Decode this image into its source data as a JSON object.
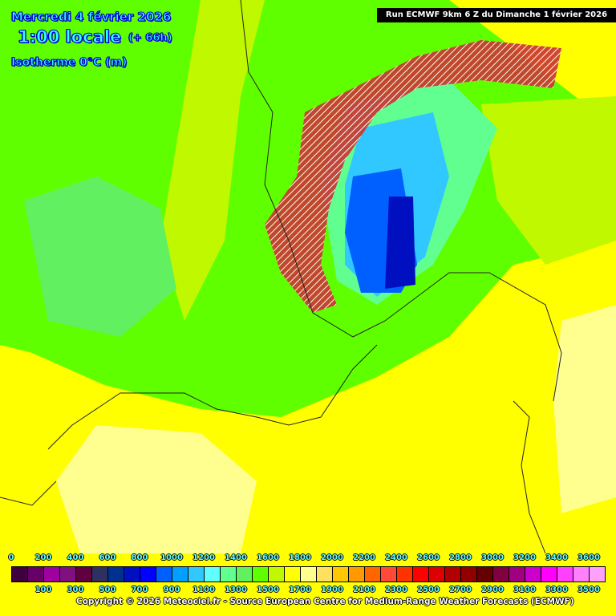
{
  "header": {
    "date": "Mercredi 4 février 2026",
    "time": "1:00 locale",
    "lead": "(+ 66h)",
    "parameter": "Isotherme 0°C (m)",
    "run": "Run ECMWF 9km 6 Z du Dimanche 1 février 2026"
  },
  "legend": {
    "unit": "m",
    "top_labels": [
      "0",
      "200",
      "400",
      "600",
      "800",
      "1000",
      "1200",
      "1400",
      "1600",
      "1800",
      "2000",
      "2200",
      "2400",
      "2600",
      "2800",
      "3000",
      "3200",
      "3400",
      "3600"
    ],
    "bottom_labels": [
      "100",
      "300",
      "500",
      "700",
      "900",
      "1100",
      "1300",
      "1500",
      "1700",
      "1900",
      "2100",
      "2300",
      "2500",
      "2700",
      "2900",
      "3100",
      "3300",
      "3500"
    ],
    "colors": [
      "#400040",
      "#660066",
      "#a000a0",
      "#801080",
      "#600040",
      "#303060",
      "#003090",
      "#0010c0",
      "#0000ff",
      "#0060ff",
      "#00a0ff",
      "#30c8ff",
      "#60ffff",
      "#60ff90",
      "#60f060",
      "#60ff00",
      "#c0f800",
      "#ffff00",
      "#ffff90",
      "#ffe060",
      "#ffc800",
      "#ff9900",
      "#ff6600",
      "#ff4a3a",
      "#ff3300",
      "#ff0000",
      "#dd0000",
      "#b00000",
      "#900000",
      "#660000",
      "#800040",
      "#a00080",
      "#cc00cc",
      "#ff00ff",
      "#ff40ff",
      "#ff80ff",
      "#ffa0ff"
    ]
  },
  "footer": {
    "copyright": "Copyright © 2026 Meteociel.fr - Source European Centre for Medium-Range Weather Forecasts (ECMWF)"
  }
}
